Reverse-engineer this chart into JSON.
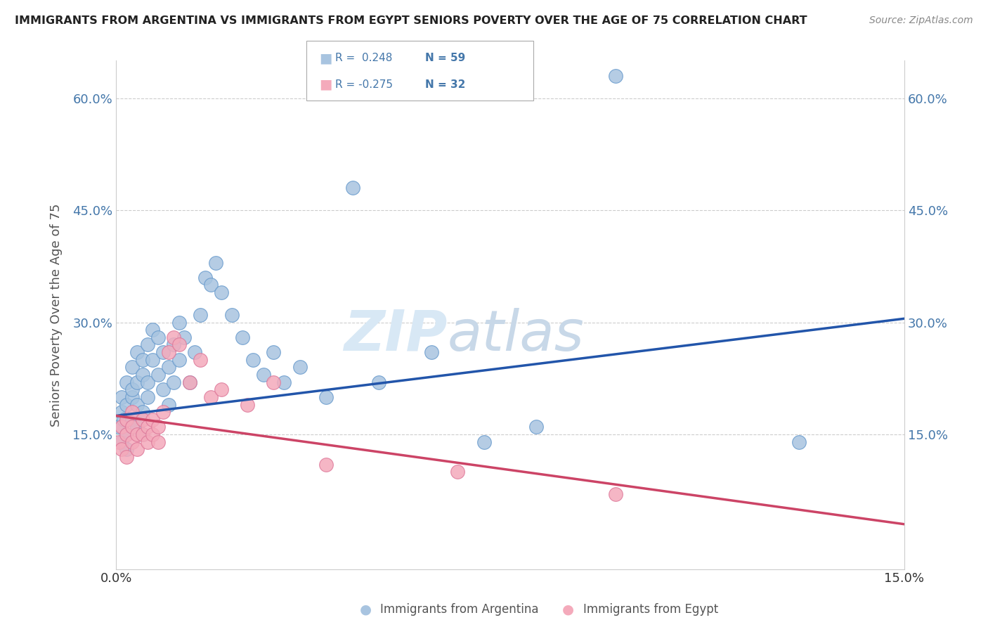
{
  "title": "IMMIGRANTS FROM ARGENTINA VS IMMIGRANTS FROM EGYPT SENIORS POVERTY OVER THE AGE OF 75 CORRELATION CHART",
  "source": "Source: ZipAtlas.com",
  "ylabel": "Seniors Poverty Over the Age of 75",
  "blue_color": "#A8C4E0",
  "pink_color": "#F4AABB",
  "line_blue": "#2255AA",
  "line_pink": "#CC4466",
  "tick_color": "#4477AA",
  "xmin": 0.0,
  "xmax": 0.15,
  "ymin": -0.03,
  "ymax": 0.65,
  "yticks": [
    0.0,
    0.15,
    0.3,
    0.45,
    0.6
  ],
  "ytick_labels": [
    "",
    "15.0%",
    "30.0%",
    "45.0%",
    "60.0%"
  ],
  "xticks": [
    0.0,
    0.15
  ],
  "xtick_labels": [
    "0.0%",
    "15.0%"
  ],
  "legend1_R": "R =  0.248",
  "legend1_N": "N = 59",
  "legend2_R": "R = -0.275",
  "legend2_N": "N = 32",
  "bottom_label1": "Immigrants from Argentina",
  "bottom_label2": "Immigrants from Egypt",
  "argentina_x": [
    0.0005,
    0.001,
    0.001,
    0.001,
    0.0015,
    0.002,
    0.002,
    0.002,
    0.002,
    0.003,
    0.003,
    0.003,
    0.003,
    0.004,
    0.004,
    0.004,
    0.004,
    0.005,
    0.005,
    0.005,
    0.005,
    0.006,
    0.006,
    0.006,
    0.007,
    0.007,
    0.008,
    0.008,
    0.009,
    0.009,
    0.01,
    0.01,
    0.011,
    0.011,
    0.012,
    0.012,
    0.013,
    0.014,
    0.015,
    0.016,
    0.017,
    0.018,
    0.019,
    0.02,
    0.022,
    0.024,
    0.026,
    0.028,
    0.03,
    0.032,
    0.035,
    0.04,
    0.045,
    0.05,
    0.06,
    0.07,
    0.08,
    0.095,
    0.13
  ],
  "argentina_y": [
    0.16,
    0.14,
    0.18,
    0.2,
    0.17,
    0.15,
    0.19,
    0.22,
    0.13,
    0.2,
    0.17,
    0.21,
    0.24,
    0.16,
    0.22,
    0.19,
    0.26,
    0.18,
    0.23,
    0.15,
    0.25,
    0.2,
    0.27,
    0.22,
    0.25,
    0.29,
    0.23,
    0.28,
    0.21,
    0.26,
    0.24,
    0.19,
    0.27,
    0.22,
    0.25,
    0.3,
    0.28,
    0.22,
    0.26,
    0.31,
    0.36,
    0.35,
    0.38,
    0.34,
    0.31,
    0.28,
    0.25,
    0.23,
    0.26,
    0.22,
    0.24,
    0.2,
    0.48,
    0.22,
    0.26,
    0.14,
    0.16,
    0.63,
    0.14
  ],
  "egypt_x": [
    0.0005,
    0.001,
    0.001,
    0.002,
    0.002,
    0.002,
    0.003,
    0.003,
    0.003,
    0.004,
    0.004,
    0.005,
    0.005,
    0.006,
    0.006,
    0.007,
    0.007,
    0.008,
    0.008,
    0.009,
    0.01,
    0.011,
    0.012,
    0.014,
    0.016,
    0.018,
    0.02,
    0.025,
    0.03,
    0.04,
    0.065,
    0.095
  ],
  "egypt_y": [
    0.14,
    0.16,
    0.13,
    0.15,
    0.17,
    0.12,
    0.16,
    0.14,
    0.18,
    0.15,
    0.13,
    0.17,
    0.15,
    0.16,
    0.14,
    0.17,
    0.15,
    0.16,
    0.14,
    0.18,
    0.26,
    0.28,
    0.27,
    0.22,
    0.25,
    0.2,
    0.21,
    0.19,
    0.22,
    0.11,
    0.1,
    0.07
  ],
  "arg_line_x0": 0.0,
  "arg_line_y0": 0.175,
  "arg_line_x1": 0.15,
  "arg_line_y1": 0.305,
  "egy_line_x0": 0.0,
  "egy_line_y0": 0.175,
  "egy_line_x1": 0.15,
  "egy_line_y1": 0.03
}
